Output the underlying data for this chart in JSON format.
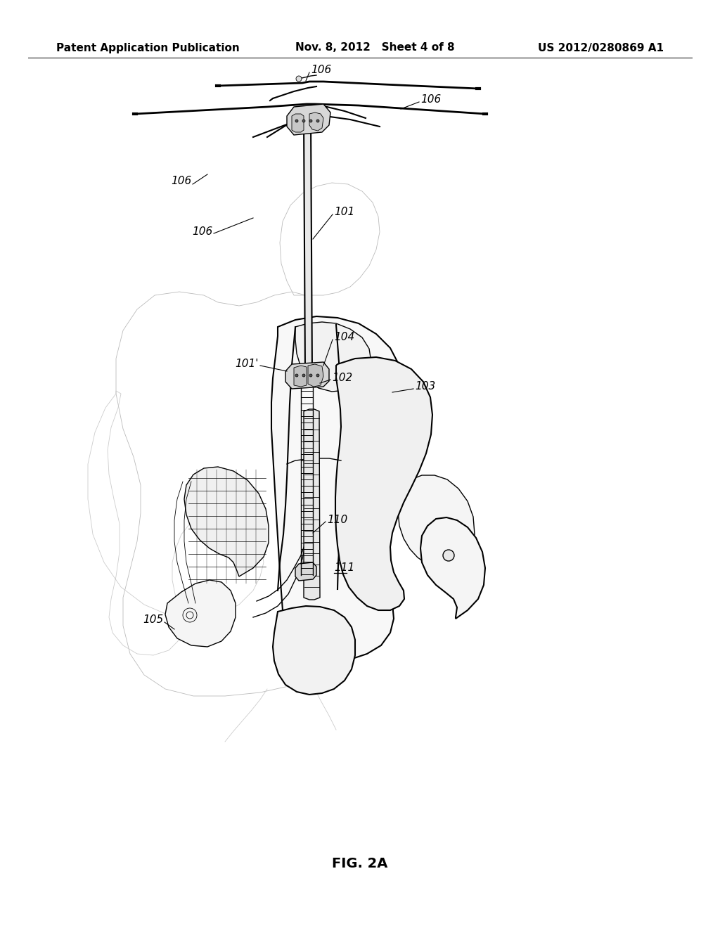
{
  "bg_color": "#ffffff",
  "header_left": "Patent Application Publication",
  "header_mid": "Nov. 8, 2012   Sheet 4 of 8",
  "header_right": "US 2012/0280869 A1",
  "fig_caption": "FIG. 2A",
  "line_color": "#000000",
  "label_color": "#000000",
  "light_gray": "#cccccc",
  "mid_gray": "#888888",
  "header_fontsize": 11,
  "label_fontsize": 11,
  "caption_fontsize": 14
}
